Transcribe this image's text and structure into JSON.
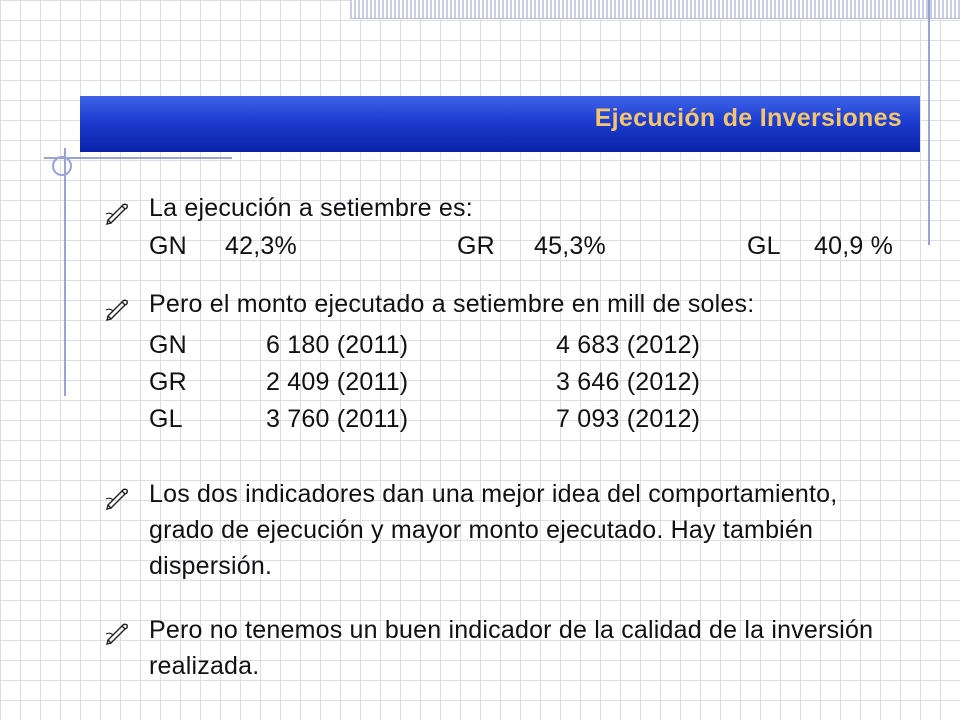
{
  "title": "Ejecución de Inversiones",
  "bullet_icon": "writing-hand-icon",
  "colors": {
    "title_bar": "#1d3cd0",
    "title_text": "#f3c66d",
    "grid": "#dcdcec"
  },
  "items": [
    {
      "text": "La ejecución a setiembre es:",
      "row": {
        "gn": "GN",
        "gn_val": "42,3%",
        "gr": "GR",
        "gr_val": "45,3%",
        "gl": "GL",
        "gl_val": "40,9 %"
      }
    },
    {
      "text": "Pero el monto ejecutado a setiembre en mill de soles:",
      "rows": [
        {
          "label": "GN",
          "v2011": "6 180 (2011)",
          "v2012": "4 683 (2012)"
        },
        {
          "label": "GR",
          "v2011": "2 409 (2011)",
          "v2012": "3 646 (2012)"
        },
        {
          "label": "GL",
          "v2011": "3 760 (2011)",
          "v2012": "7 093 (2012)"
        }
      ]
    },
    {
      "text": "Los dos indicadores dan una mejor idea del comportamiento, grado de ejecución y mayor monto ejecutado. Hay también dispersión."
    },
    {
      "text": "Pero no tenemos un buen indicador de la calidad de la inversión realizada."
    }
  ]
}
